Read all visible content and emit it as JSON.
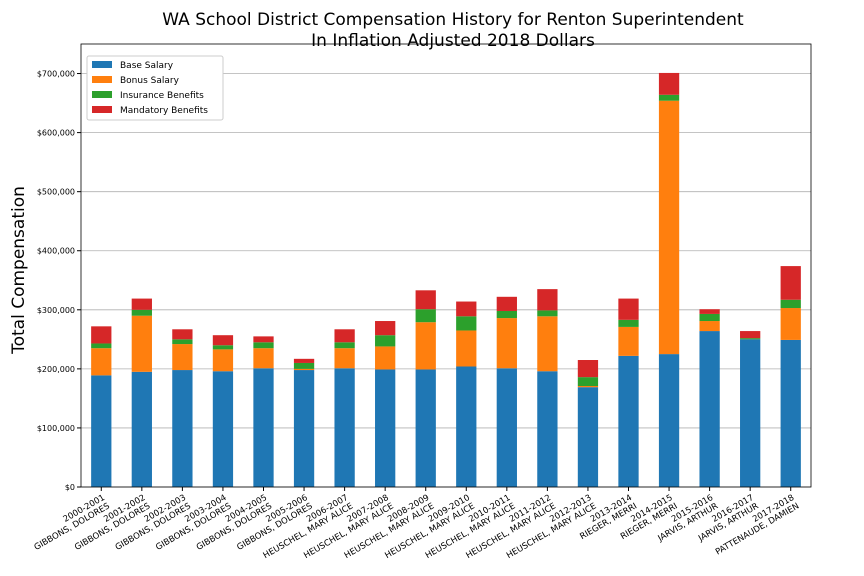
{
  "chart_data": {
    "type": "stacked_bar",
    "title": "WA School District Compensation History for Renton Superintendent",
    "subtitle": "In Inflation Adjusted 2018 Dollars",
    "ylabel": "Total Compensation",
    "categories": [
      "2000-2001\nGIBBONS, DOLORES",
      "2001-2002\nGIBBONS, DOLORES",
      "2002-2003\nGIBBONS, DOLORES",
      "2003-2004\nGIBBONS, DOLORES",
      "2004-2005\nGIBBONS, DOLORES",
      "2005-2006\nGIBBONS, DOLORES",
      "2006-2007\nHEUSCHEL, MARY ALICE",
      "2007-2008\nHEUSCHEL, MARY ALICE",
      "2008-2009\nHEUSCHEL, MARY ALICE",
      "2009-2010\nHEUSCHEL, MARY ALICE",
      "2010-2011\nHEUSCHEL, MARY ALICE",
      "2011-2012\nHEUSCHEL, MARY ALICE",
      "2012-2013\nHEUSCHEL, MARY ALICE",
      "2013-2014\nRIEGER, MERRI",
      "2014-2015\nRIEGER, MERRI",
      "2015-2016\nJARVIS, ARTHUR",
      "2016-2017\nJARVIS, ARTHUR",
      "2017-2018\nPATTENAUDE, DAMIEN"
    ],
    "series": [
      {
        "name": "Base Salary",
        "color": "#1f77b4",
        "values": [
          189000,
          195000,
          198000,
          196000,
          201000,
          198000,
          201000,
          199000,
          199000,
          204000,
          201000,
          196000,
          169000,
          222000,
          225000,
          264000,
          250000,
          249000
        ]
      },
      {
        "name": "Bonus Salary",
        "color": "#ff7f0e",
        "values": [
          46000,
          95000,
          44000,
          37000,
          34000,
          2000,
          34000,
          39000,
          80000,
          61000,
          85000,
          93000,
          2000,
          49000,
          429000,
          17000,
          0,
          54000
        ]
      },
      {
        "name": "Insurance Benefits",
        "color": "#2ca02c",
        "values": [
          8000,
          10000,
          8000,
          7000,
          10000,
          10000,
          10000,
          19000,
          22000,
          24000,
          12000,
          10000,
          15000,
          12000,
          10000,
          12000,
          2000,
          14000
        ]
      },
      {
        "name": "Mandatory Benefits",
        "color": "#d62728",
        "values": [
          29000,
          19000,
          17000,
          17000,
          10000,
          7000,
          22000,
          24000,
          32000,
          25000,
          24000,
          36000,
          29000,
          36000,
          37000,
          8000,
          12000,
          57000
        ]
      }
    ],
    "ylim": [
      0,
      750000
    ],
    "yticks": [
      {
        "value": 0,
        "label": "$0"
      },
      {
        "value": 100000,
        "label": "$100,000"
      },
      {
        "value": 200000,
        "label": "$200,000"
      },
      {
        "value": 300000,
        "label": "$300,000"
      },
      {
        "value": 400000,
        "label": "$400,000"
      },
      {
        "value": 500000,
        "label": "$500,000"
      },
      {
        "value": 600000,
        "label": "$600,000"
      },
      {
        "value": 700000,
        "label": "$700,000"
      }
    ],
    "grid": true,
    "legend": "upper left"
  }
}
